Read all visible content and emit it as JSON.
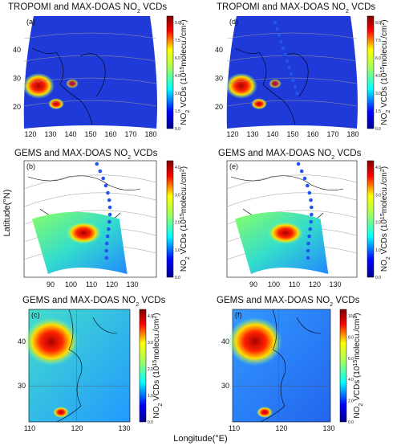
{
  "figure": {
    "y_axis_label": "Latitude(°N)",
    "x_axis_label": "Longitude(°E)",
    "panels": [
      {
        "title": [
          "TROPOMI and MAX-DOAS NO",
          "2",
          " VCDs"
        ],
        "label": "(a)",
        "lat_ticks": [
          "40",
          "30",
          "20"
        ],
        "lon_ticks": [
          "120",
          "130",
          "140",
          "150",
          "160",
          "170",
          "180"
        ],
        "colorbar_ticks": [
          "0.0",
          "1.5",
          "3.0",
          "4.5",
          "6.0",
          "7.5",
          "9.0"
        ],
        "colorbar_label": [
          "NO",
          "2",
          " VCDs (10",
          "15",
          "molecu./cm",
          "2",
          ")"
        ]
      },
      {
        "title": [
          "TROPOMI and MAX-DOAS NO",
          "2",
          " VCDs"
        ],
        "label": "(d)",
        "lat_ticks": [
          "40",
          "30",
          "20"
        ],
        "lon_ticks": [
          "120",
          "130",
          "140",
          "150",
          "160",
          "170",
          "180"
        ],
        "colorbar_ticks": [
          "0.0",
          "1.5",
          "3.0",
          "4.5",
          "6.0",
          "7.5",
          "9.0"
        ],
        "colorbar_label": [
          "NO",
          "2",
          " VCDs (10",
          "15",
          "molecu./cm",
          "2",
          ")"
        ]
      },
      {
        "title": [
          "GEMS and MAX-DOAS NO",
          "2",
          " VCDs"
        ],
        "label": "(b)",
        "lat_ticks": [],
        "lon_ticks": [
          "90",
          "100",
          "110",
          "120",
          "130"
        ],
        "colorbar_ticks": [
          "0.0",
          "1.0",
          "2.0",
          "3.0",
          "4.0"
        ],
        "colorbar_label": [
          "NO",
          "2",
          " VCDs (10",
          "15",
          "molecu./cm",
          "2",
          ")"
        ]
      },
      {
        "title": [
          "GEMS and MAX-DOAS NO",
          "2",
          " VCDs"
        ],
        "label": "(e)",
        "lat_ticks": [],
        "lon_ticks": [
          "90",
          "100",
          "110",
          "120",
          "130"
        ],
        "colorbar_ticks": [
          "0.0",
          "1.0",
          "2.0",
          "3.0",
          "4.0"
        ],
        "colorbar_label": [
          "NO",
          "2",
          " VCDs (10",
          "15",
          "molecu./cm",
          "2",
          ")"
        ]
      },
      {
        "title": [
          "GEMS and MAX-DOAS NO",
          "2",
          " VCDs"
        ],
        "label": "(c)",
        "lat_ticks": [
          "40",
          "30"
        ],
        "lon_ticks": [
          "110",
          "120",
          "130"
        ],
        "colorbar_ticks": [
          "0.0",
          "1.0",
          "2.0",
          "3.0",
          "4.0"
        ],
        "colorbar_label": [
          "NO",
          "2",
          " VCDs (10",
          "15",
          "molecu./cm",
          "2",
          ")"
        ]
      },
      {
        "title": [
          "GEMS and MAX-DOAS NO",
          "2",
          " VCDs"
        ],
        "label": "(f)",
        "lat_ticks": [
          "40",
          "30"
        ],
        "lon_ticks": [
          "110",
          "120",
          "130"
        ],
        "colorbar_ticks": [
          "0.0",
          "2.0",
          "4.0",
          "6.0",
          "8.0",
          "10.0"
        ],
        "colorbar_label": [
          "NO",
          "2",
          " VCDs (10",
          "15",
          "molecu./cm",
          "2",
          ")"
        ]
      }
    ]
  }
}
